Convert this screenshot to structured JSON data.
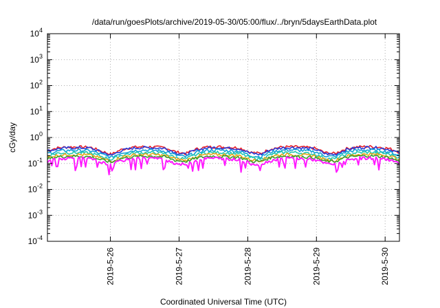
{
  "chart_data": {
    "type": "line",
    "title": "/data/run/goesPlots/archive/2019-05-30/05:00/flux/../bryn/5daysEarthData.plot",
    "xlabel": "Coordinated Universal Time (UTC)",
    "ylabel": "cGy/day",
    "yscale": "log",
    "ylim": [
      0.0001,
      10000
    ],
    "ytick_labels": [
      {
        "value": 0.0001,
        "base": "10",
        "exp": "-4"
      },
      {
        "value": 0.001,
        "base": "10",
        "exp": "-3"
      },
      {
        "value": 0.01,
        "base": "10",
        "exp": "-2"
      },
      {
        "value": 0.1,
        "base": "10",
        "exp": "-1"
      },
      {
        "value": 1,
        "base": "10",
        "exp": "0"
      },
      {
        "value": 10,
        "base": "10",
        "exp": "1"
      },
      {
        "value": 100,
        "base": "10",
        "exp": "2"
      },
      {
        "value": 1000,
        "base": "10",
        "exp": "3"
      },
      {
        "value": 10000,
        "base": "10",
        "exp": "4"
      }
    ],
    "xlim": [
      "2019-05-25 02:00",
      "2019-05-30 05:00"
    ],
    "xticks": [
      "2019-5-26",
      "2019-5-27",
      "2019-5-28",
      "2019-5-29",
      "2019-5-30"
    ],
    "grid": true,
    "series": [
      {
        "color": "#e8202a",
        "values": [
          0.32,
          0.4,
          0.43,
          0.43,
          0.42,
          0.3,
          0.22,
          0.35,
          0.42,
          0.44,
          0.43,
          0.41,
          0.28,
          0.24,
          0.36,
          0.43,
          0.44,
          0.42,
          0.4,
          0.27,
          0.24,
          0.37,
          0.43,
          0.44,
          0.42,
          0.39,
          0.26,
          0.24,
          0.37,
          0.43,
          0.45,
          0.43,
          0.38,
          0.27
        ]
      },
      {
        "color": "#2a3bd6",
        "values": [
          0.3,
          0.37,
          0.4,
          0.4,
          0.39,
          0.28,
          0.2,
          0.32,
          0.39,
          0.41,
          0.4,
          0.38,
          0.26,
          0.22,
          0.33,
          0.4,
          0.41,
          0.39,
          0.37,
          0.25,
          0.22,
          0.34,
          0.4,
          0.41,
          0.39,
          0.36,
          0.24,
          0.22,
          0.34,
          0.4,
          0.42,
          0.4,
          0.35,
          0.25
        ]
      },
      {
        "color": "#12a0d8",
        "values": [
          0.24,
          0.3,
          0.32,
          0.32,
          0.31,
          0.23,
          0.17,
          0.26,
          0.31,
          0.33,
          0.32,
          0.3,
          0.21,
          0.18,
          0.27,
          0.32,
          0.33,
          0.31,
          0.3,
          0.2,
          0.18,
          0.28,
          0.32,
          0.33,
          0.31,
          0.29,
          0.2,
          0.18,
          0.28,
          0.32,
          0.33,
          0.32,
          0.28,
          0.2
        ]
      },
      {
        "color": "#22c7b0",
        "values": [
          0.2,
          0.25,
          0.26,
          0.26,
          0.25,
          0.19,
          0.14,
          0.21,
          0.25,
          0.26,
          0.26,
          0.24,
          0.17,
          0.15,
          0.22,
          0.26,
          0.27,
          0.25,
          0.24,
          0.17,
          0.15,
          0.22,
          0.26,
          0.27,
          0.25,
          0.23,
          0.16,
          0.15,
          0.22,
          0.26,
          0.27,
          0.26,
          0.23,
          0.17
        ]
      },
      {
        "color": "#e6a817",
        "values": [
          0.17,
          0.21,
          0.22,
          0.22,
          0.21,
          0.16,
          0.12,
          0.18,
          0.21,
          0.22,
          0.22,
          0.2,
          0.15,
          0.13,
          0.19,
          0.22,
          0.22,
          0.21,
          0.2,
          0.14,
          0.13,
          0.19,
          0.22,
          0.22,
          0.21,
          0.2,
          0.14,
          0.13,
          0.19,
          0.22,
          0.23,
          0.22,
          0.2,
          0.14
        ]
      },
      {
        "color": "#3b9a2e",
        "values": [
          0.15,
          0.18,
          0.19,
          0.19,
          0.18,
          0.14,
          0.11,
          0.16,
          0.18,
          0.19,
          0.19,
          0.18,
          0.13,
          0.12,
          0.16,
          0.19,
          0.19,
          0.18,
          0.17,
          0.12,
          0.12,
          0.17,
          0.19,
          0.19,
          0.18,
          0.17,
          0.12,
          0.12,
          0.17,
          0.19,
          0.2,
          0.19,
          0.17,
          0.12
        ]
      },
      {
        "color": "#ff1aff",
        "values": [
          0.12,
          0.15,
          0.16,
          0.16,
          0.15,
          0.11,
          0.09,
          0.13,
          0.15,
          0.16,
          0.16,
          0.14,
          0.1,
          0.09,
          0.13,
          0.16,
          0.16,
          0.15,
          0.14,
          0.1,
          0.09,
          0.13,
          0.16,
          0.16,
          0.15,
          0.14,
          0.1,
          0.09,
          0.13,
          0.16,
          0.16,
          0.16,
          0.14,
          0.1
        ]
      }
    ]
  }
}
